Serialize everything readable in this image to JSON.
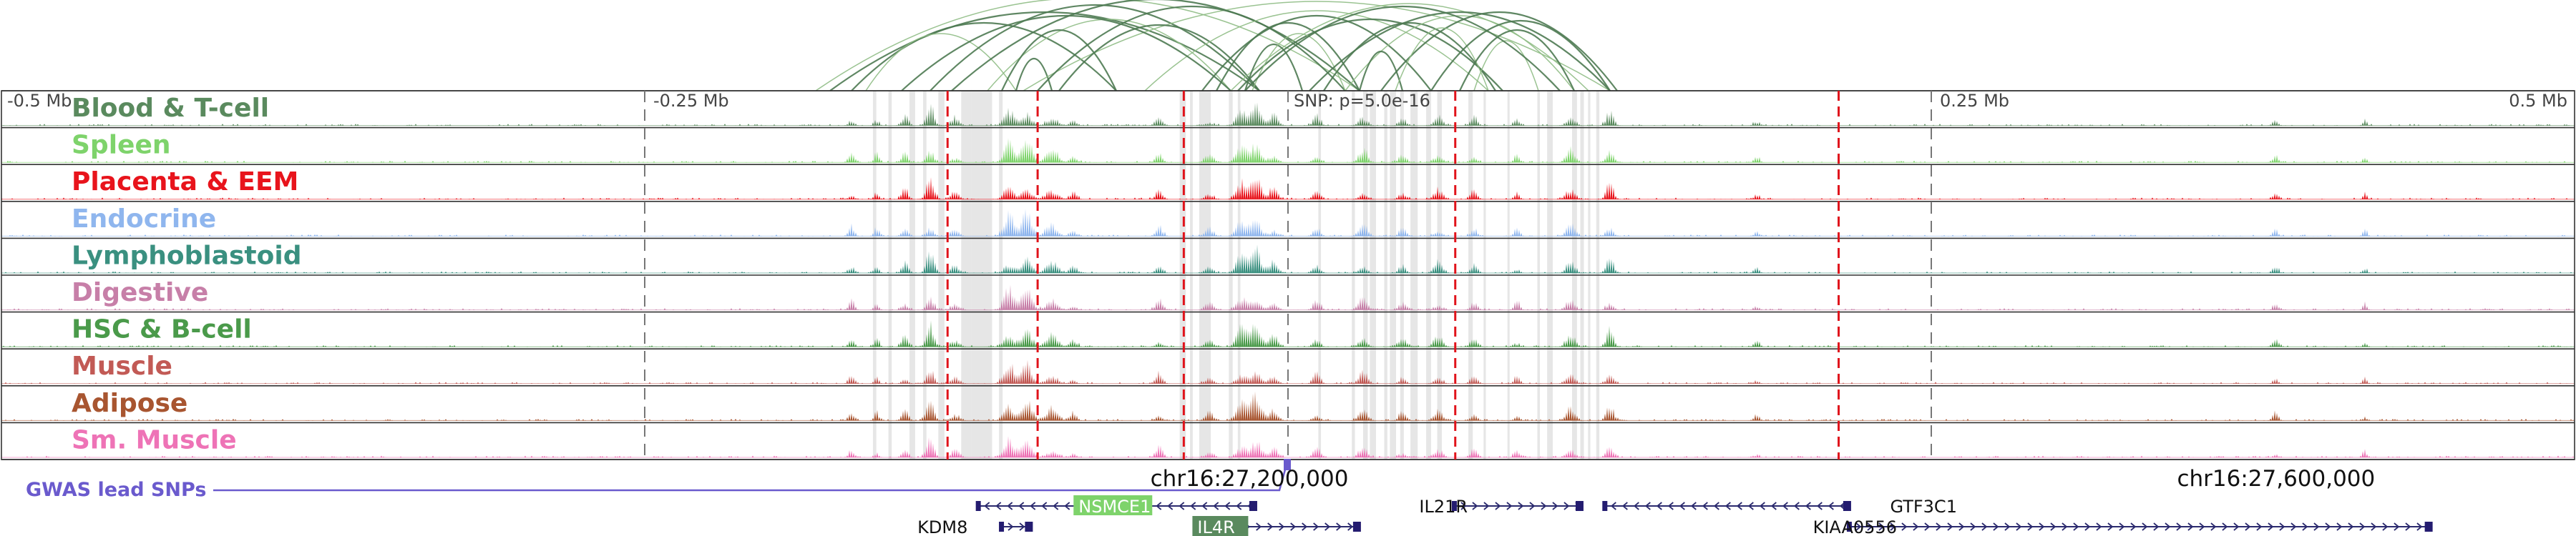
{
  "axis": {
    "ticks": [
      {
        "label": "-0.5 Mb",
        "pos": -0.5
      },
      {
        "label": "-0.25 Mb",
        "pos": -0.25
      },
      {
        "label": "0.25 Mb",
        "pos": 0.25
      },
      {
        "label": "0.5 Mb",
        "pos": 0.5
      }
    ],
    "range_mb": [
      -0.5,
      0.5
    ]
  },
  "snp": {
    "label": "SNP: p=5.0e-16",
    "pos": 0.0
  },
  "gwas": {
    "label": "GWAS lead SNPs",
    "color": "#6a5acd"
  },
  "coords": [
    {
      "label": "chr16:27,200,000",
      "pos": -0.015
    },
    {
      "label": "chr16:27,600,000",
      "pos": 0.384
    }
  ],
  "tracks": [
    {
      "name": "Blood & T-cell",
      "color": "#5a8a5e"
    },
    {
      "name": "Spleen",
      "color": "#7ed36b"
    },
    {
      "name": "Placenta & EEM",
      "color": "#e8141c"
    },
    {
      "name": "Endocrine",
      "color": "#8fb6ee"
    },
    {
      "name": "Lymphoblastoid",
      "color": "#3a9080"
    },
    {
      "name": "Digestive",
      "color": "#c77fa8"
    },
    {
      "name": "HSC & B-cell",
      "color": "#4a9a4a"
    },
    {
      "name": "Muscle",
      "color": "#c25a55"
    },
    {
      "name": "Adipose",
      "color": "#a85530"
    },
    {
      "name": "Sm. Muscle",
      "color": "#ee73b6"
    }
  ],
  "genes": [
    {
      "name": "NSMCE1",
      "start": -0.1205,
      "end": -0.0128,
      "row": 0,
      "strand": "-",
      "label_pos": -0.0814,
      "highlight": "#7ed36b"
    },
    {
      "name": "IL4R",
      "start": -0.024,
      "end": 0.0275,
      "row": 1,
      "strand": "+",
      "label_pos": -0.0352,
      "highlight": "#5a8a5e"
    },
    {
      "name": "KDM8",
      "start": -0.1115,
      "end": -0.1,
      "row": 1,
      "strand": "+",
      "label_pos": -0.144
    },
    {
      "name": "IL21R",
      "start": 0.0645,
      "end": 0.114,
      "row": 0,
      "strand": "+",
      "label_pos": 0.051
    },
    {
      "name": "GTF3C1",
      "start": 0.123,
      "end": 0.218,
      "row": 0,
      "strand": "-",
      "label_pos": 0.234
    },
    {
      "name": "KIAA0556",
      "start": 0.218,
      "end": 0.444,
      "row": 1,
      "strand": "+",
      "label_pos": 0.204
    }
  ],
  "red_lines": [
    -0.1323,
    -0.0973,
    -0.0405,
    0.065,
    0.214
  ],
  "grey_bands": [
    [
      -0.1613,
      -0.16
    ],
    [
      -0.1553,
      -0.154
    ],
    [
      -0.1471,
      -0.1449
    ],
    [
      -0.1418,
      -0.1405
    ],
    [
      -0.1359,
      -0.1335
    ],
    [
      -0.127,
      -0.123
    ],
    [
      -0.123,
      -0.115
    ],
    [
      -0.1123,
      -0.1109
    ],
    [
      -0.0421,
      -0.0397
    ],
    [
      -0.0381,
      -0.037
    ],
    [
      -0.0345,
      -0.03
    ],
    [
      -0.023,
      -0.0215
    ],
    [
      -0.0195,
      -0.0185
    ],
    [
      0.0118,
      0.0128
    ],
    [
      0.0248,
      0.026
    ],
    [
      0.0292,
      0.031
    ],
    [
      0.0318,
      0.0342
    ],
    [
      0.0374,
      0.0386
    ],
    [
      0.0396,
      0.042
    ],
    [
      0.0436,
      0.045
    ],
    [
      0.0476,
      0.0504
    ],
    [
      0.0537,
      0.0556
    ],
    [
      0.058,
      0.0598
    ],
    [
      0.0701,
      0.0718
    ],
    [
      0.076,
      0.0769
    ],
    [
      0.0853,
      0.086
    ],
    [
      0.0969,
      0.0979
    ],
    [
      0.1007,
      0.1029
    ],
    [
      0.1104,
      0.1123
    ],
    [
      0.1136,
      0.115
    ],
    [
      0.1166,
      0.1175
    ],
    [
      0.1198,
      0.121
    ]
  ]
}
